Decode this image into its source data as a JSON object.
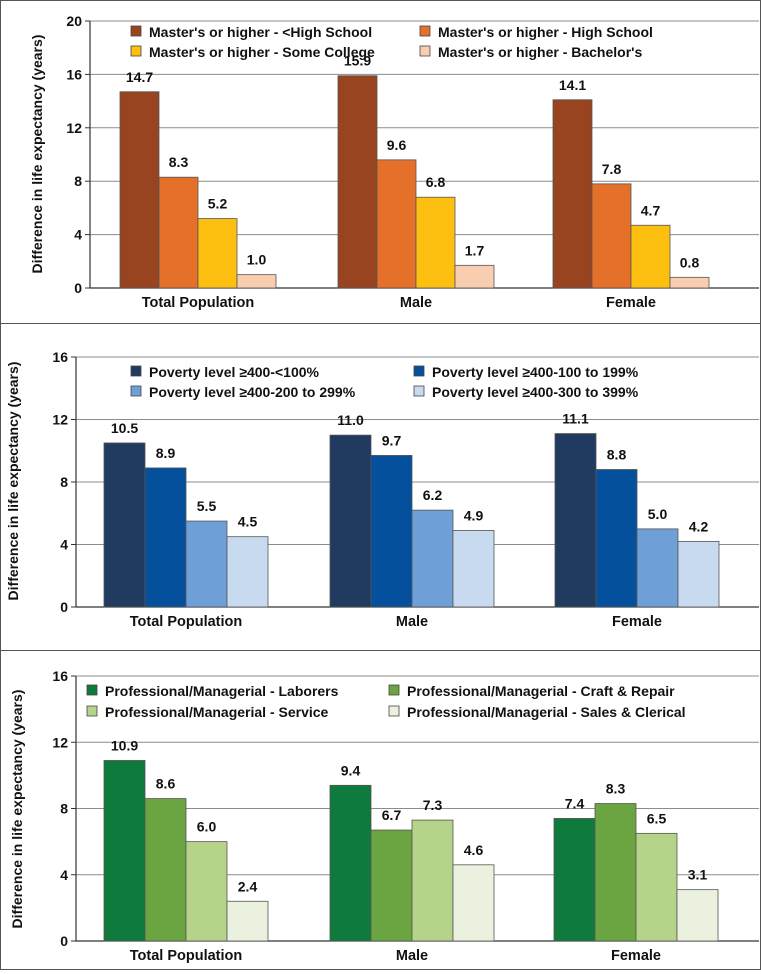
{
  "chart_data": [
    {
      "type": "bar",
      "title": "",
      "xlabel": "",
      "ylabel": "Difference in life expectancy (years)",
      "ylim": [
        0,
        20
      ],
      "yticks": [
        "0",
        "4",
        "8",
        "12",
        "16",
        "20"
      ],
      "grid": true,
      "legend_position": "top",
      "categories": [
        "Total Population",
        "Male",
        "Female"
      ],
      "series": [
        {
          "name": "Master's or higher - <High School",
          "values": [
            14.7,
            15.9,
            14.1
          ],
          "labels": [
            "14.7",
            "15.9",
            "14.1"
          ],
          "color": "#984421"
        },
        {
          "name": "Master's or higher - High School",
          "values": [
            8.3,
            9.6,
            7.8
          ],
          "labels": [
            "8.3",
            "9.6",
            "7.8"
          ],
          "color": "#E5702A"
        },
        {
          "name": "Master's or higher - Some College",
          "values": [
            5.2,
            6.8,
            4.7
          ],
          "labels": [
            "5.2",
            "6.8",
            "4.7"
          ],
          "color": "#FDC010"
        },
        {
          "name": "Master's or higher - Bachelor's",
          "values": [
            1.0,
            1.7,
            0.8
          ],
          "labels": [
            "1.0",
            "1.7",
            "0.8"
          ],
          "color": "#F8CDB0"
        }
      ]
    },
    {
      "type": "bar",
      "title": "",
      "xlabel": "",
      "ylabel": "Difference in life expectancy (years)",
      "ylim": [
        0,
        16
      ],
      "yticks": [
        "0",
        "4",
        "8",
        "12",
        "16"
      ],
      "grid": true,
      "legend_position": "top",
      "categories": [
        "Total Population",
        "Male",
        "Female"
      ],
      "series": [
        {
          "name": "Poverty level ≥400-<100%",
          "values": [
            10.5,
            11.0,
            11.1
          ],
          "labels": [
            "10.5",
            "11.0",
            "11.1"
          ],
          "color": "#203A60"
        },
        {
          "name": "Poverty level ≥400-100 to 199%",
          "values": [
            8.9,
            9.7,
            8.8
          ],
          "labels": [
            "8.9",
            "9.7",
            "8.8"
          ],
          "color": "#04509C"
        },
        {
          "name": "Poverty level ≥400-200 to 299%",
          "values": [
            5.5,
            6.2,
            5.0
          ],
          "labels": [
            "5.5",
            "6.2",
            "5.0"
          ],
          "color": "#6F9FD7"
        },
        {
          "name": "Poverty level ≥400-300 to 399%",
          "values": [
            4.5,
            4.9,
            4.2
          ],
          "labels": [
            "4.5",
            "4.9",
            "4.2"
          ],
          "color": "#C7DAF0"
        }
      ]
    },
    {
      "type": "bar",
      "title": "",
      "xlabel": "",
      "ylabel": "Difference in life expectancy (years)",
      "ylim": [
        0,
        16
      ],
      "yticks": [
        "0",
        "4",
        "8",
        "12",
        "16"
      ],
      "grid": true,
      "legend_position": "top",
      "categories": [
        "Total Population",
        "Male",
        "Female"
      ],
      "series": [
        {
          "name": "Professional/Managerial - Laborers",
          "values": [
            10.9,
            9.4,
            7.4
          ],
          "labels": [
            "10.9",
            "9.4",
            "7.4"
          ],
          "color": "#0E7A3C"
        },
        {
          "name": "Professional/Managerial - Craft & Repair",
          "values": [
            8.6,
            6.7,
            8.3
          ],
          "labels": [
            "8.6",
            "6.7",
            "8.3"
          ],
          "color": "#6BA542"
        },
        {
          "name": "Professional/Managerial - Service",
          "values": [
            6.0,
            7.3,
            6.5
          ],
          "labels": [
            "6.0",
            "7.3",
            "6.5"
          ],
          "color": "#B6D38A"
        },
        {
          "name": "Professional/Managerial - Sales & Clerical",
          "values": [
            2.4,
            4.6,
            3.1
          ],
          "labels": [
            "2.4",
            "4.6",
            "3.1"
          ],
          "color": "#EAF2DF"
        }
      ]
    }
  ]
}
